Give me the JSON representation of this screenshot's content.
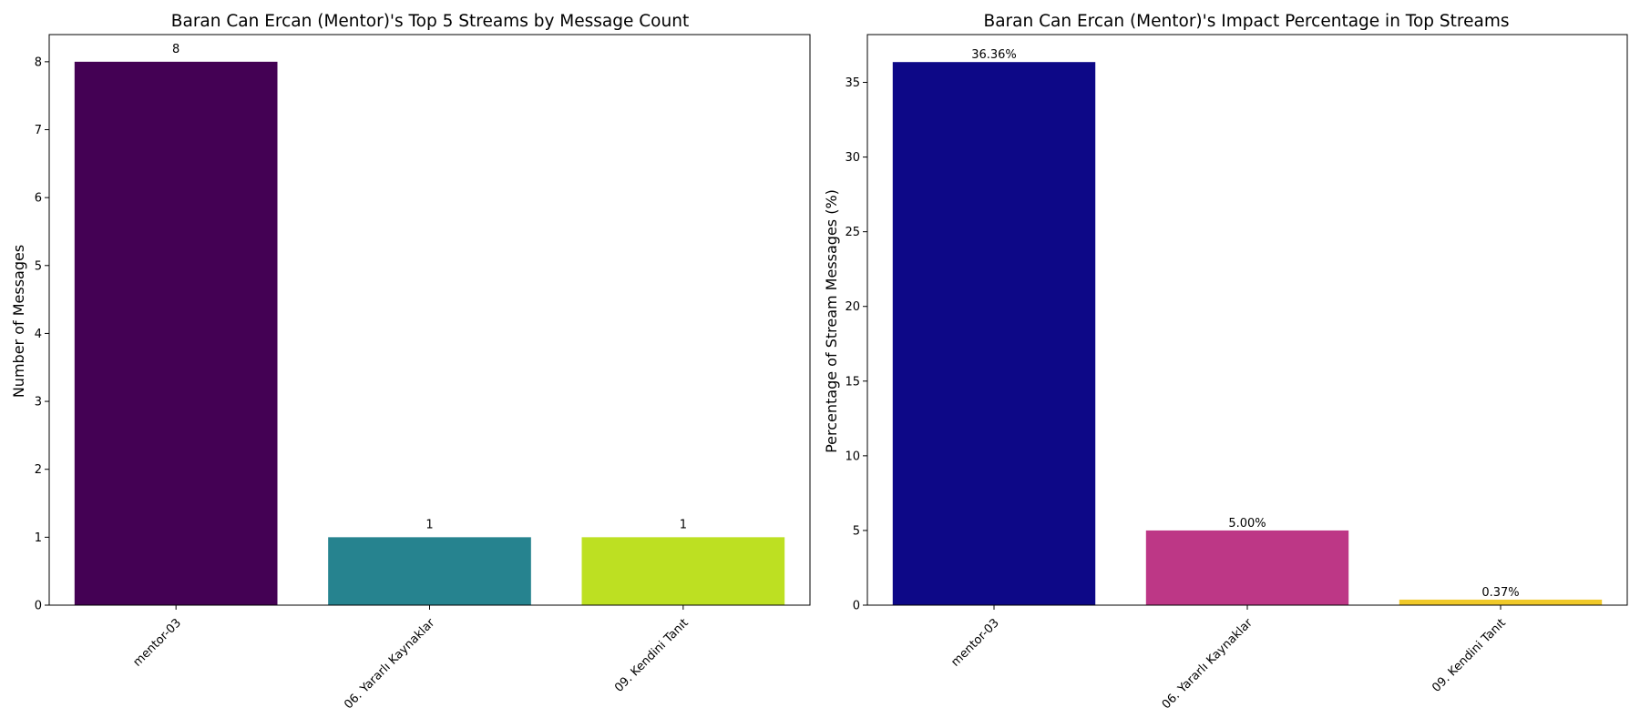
{
  "chart_data": [
    {
      "type": "bar",
      "title": "Baran Can Ercan (Mentor)'s Top 5 Streams by Message Count",
      "xlabel": "",
      "ylabel": "Number of Messages",
      "categories": [
        "mentor-03",
        "06. Yararlı Kaynaklar",
        "09. Kendini Tanıt"
      ],
      "values": [
        8,
        1,
        1
      ],
      "value_labels": [
        "8",
        "1",
        "1"
      ],
      "colors": [
        "#440154",
        "#26838f",
        "#bde022"
      ],
      "ylim": [
        0,
        8.4
      ],
      "yticks": [
        0,
        1,
        2,
        3,
        4,
        5,
        6,
        7,
        8
      ],
      "grid": false
    },
    {
      "type": "bar",
      "title": "Baran Can Ercan (Mentor)'s Impact Percentage in Top Streams",
      "xlabel": "",
      "ylabel": "Percentage of Stream Messages (%)",
      "categories": [
        "mentor-03",
        "06. Yararlı Kaynaklar",
        "09. Kendini Tanıt"
      ],
      "values": [
        36.36,
        5.0,
        0.37
      ],
      "value_labels": [
        "36.36%",
        "5.00%",
        "0.37%"
      ],
      "colors": [
        "#0d0887",
        "#bd3786",
        "#f0c929"
      ],
      "ylim": [
        0,
        38.2
      ],
      "yticks": [
        0,
        5,
        10,
        15,
        20,
        25,
        30,
        35
      ],
      "grid": false
    }
  ]
}
